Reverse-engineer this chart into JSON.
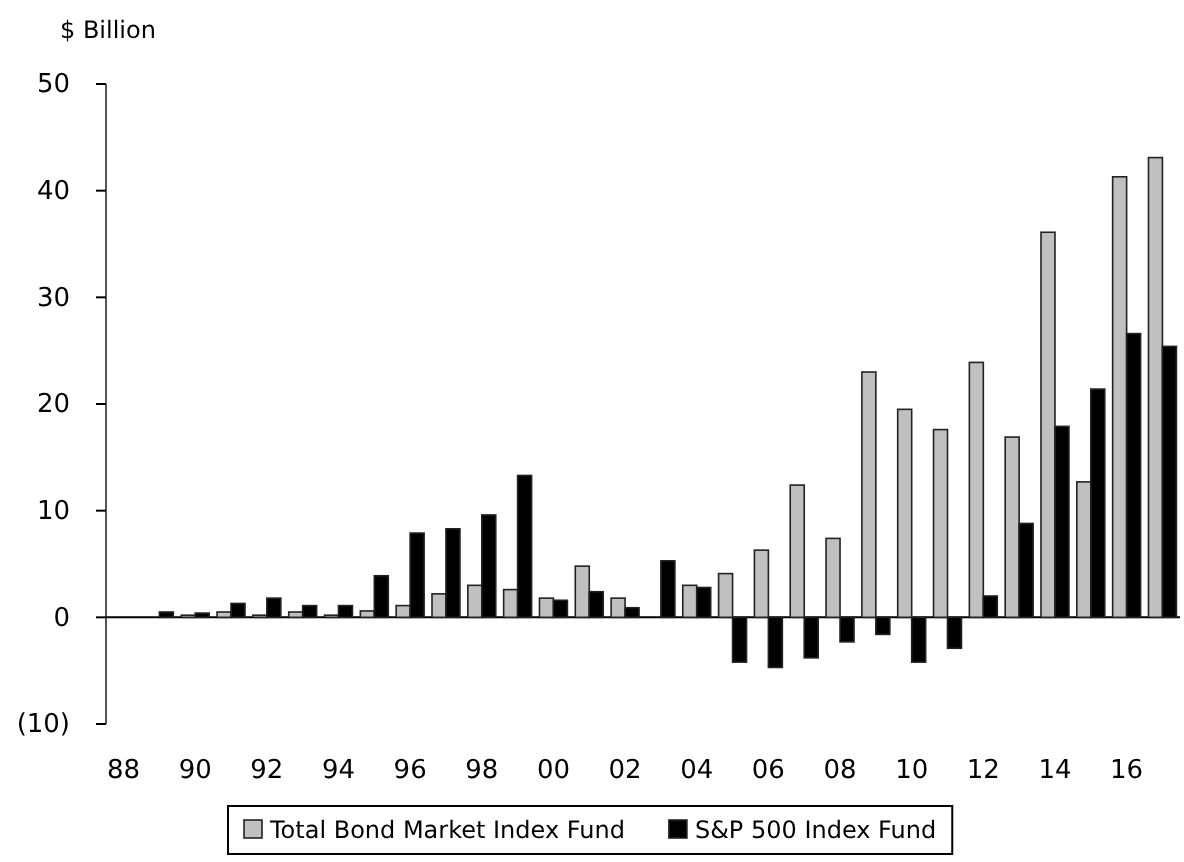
{
  "chart_data": {
    "type": "bar",
    "ylabel": "$ Billion",
    "categories": [
      "88",
      null,
      "90",
      null,
      "92",
      null,
      "94",
      null,
      "96",
      null,
      "98",
      null,
      "00",
      null,
      "02",
      null,
      "04",
      null,
      "06",
      null,
      "08",
      null,
      "10",
      null,
      "12",
      null,
      "14",
      null,
      "16",
      null
    ],
    "series": [
      {
        "name": "Total Bond Market Index Fund",
        "color": "#c0c0c0",
        "values": [
          0,
          0,
          0.2,
          0.5,
          0.2,
          0.5,
          0.2,
          0.6,
          1.1,
          2.2,
          3.0,
          2.6,
          1.8,
          4.8,
          1.8,
          0,
          3.0,
          4.1,
          6.3,
          12.4,
          7.4,
          23.0,
          19.5,
          17.6,
          23.9,
          16.9,
          36.1,
          12.7,
          41.3,
          43.1
        ]
      },
      {
        "name": "S&P 500 Index Fund",
        "color": "#000000",
        "values": [
          0,
          0.5,
          0.4,
          1.3,
          1.8,
          1.1,
          1.1,
          3.9,
          7.9,
          8.3,
          9.6,
          13.3,
          1.6,
          2.4,
          0.9,
          5.3,
          2.8,
          -4.2,
          -4.7,
          -3.8,
          -2.3,
          -1.6,
          -4.2,
          -2.9,
          2.0,
          8.8,
          17.9,
          21.4,
          26.6,
          25.4
        ]
      }
    ],
    "ylim": [
      -10,
      50
    ],
    "yticks": [
      {
        "value": -10,
        "label": "(10)"
      },
      0,
      10,
      20,
      30,
      40,
      50
    ],
    "legend": "bottom"
  }
}
